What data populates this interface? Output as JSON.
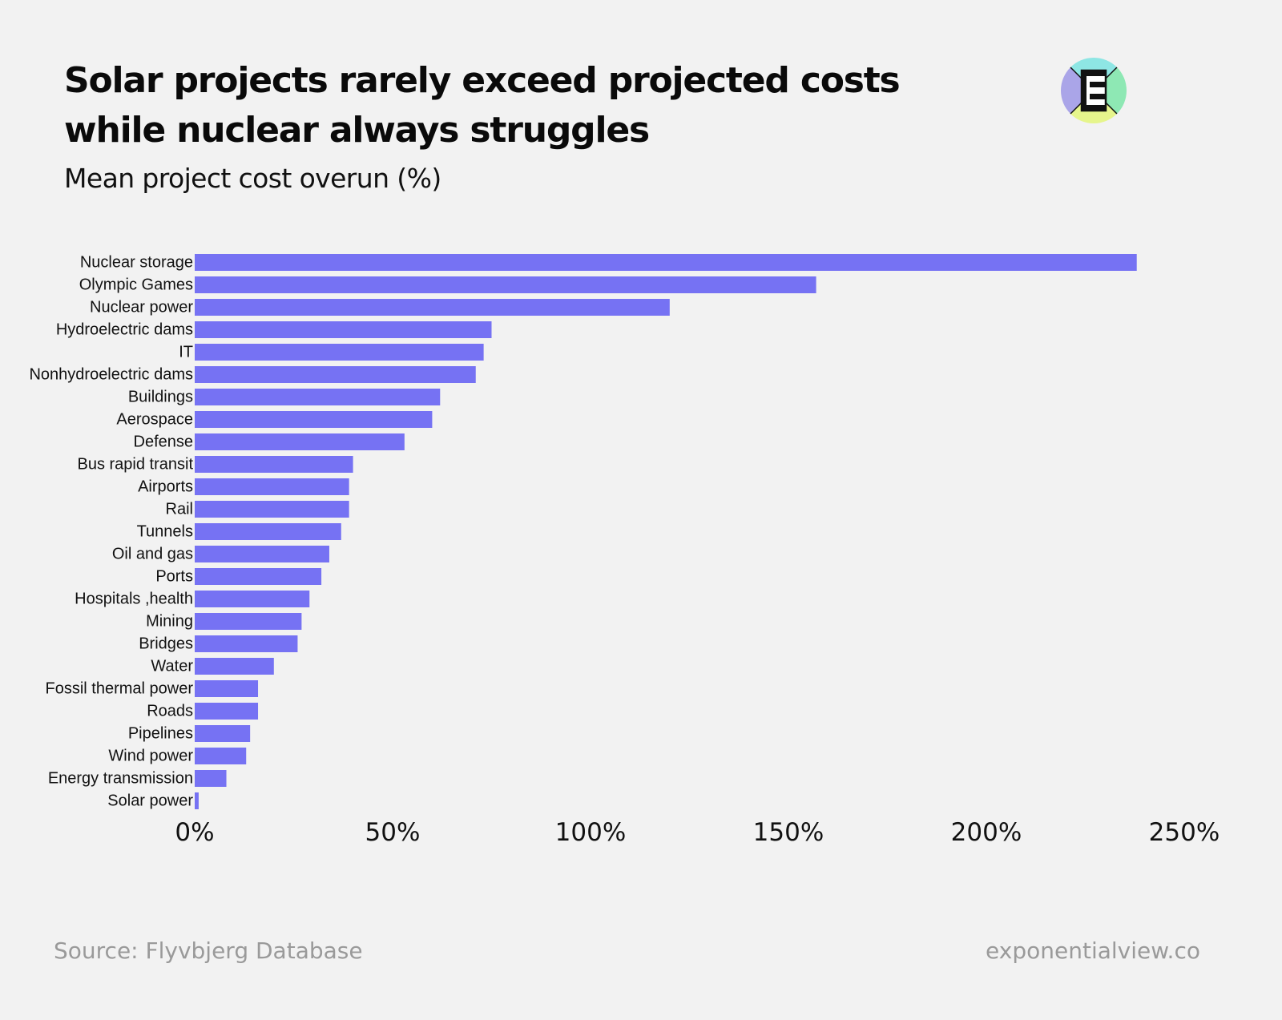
{
  "header": {
    "title": "Solar projects rarely exceed projected costs while nuclear always struggles",
    "subtitle": "Mean project cost overun (%)"
  },
  "logo": {
    "icon": "exponential-view-e-logo-icon",
    "letter": "E",
    "colors": {
      "top": "#8ee6e4",
      "right": "#8ee8b4",
      "bottom": "#e6f58c",
      "left": "#aaa5e8"
    }
  },
  "footer": {
    "source": "Source: Flyvbjerg Database",
    "site": "exponentialview.co"
  },
  "chart_data": {
    "type": "bar",
    "orientation": "horizontal",
    "bar_color": "#7672f3",
    "categories": [
      "Nuclear storage",
      "Olympic Games",
      "Nuclear power",
      "Hydroelectric dams",
      "IT",
      "Nonhydroelectric dams",
      "Buildings",
      "Aerospace",
      "Defense",
      "Bus rapid transit",
      "Airports",
      "Rail",
      "Tunnels",
      "Oil and gas",
      "Ports",
      "Hospitals ,health",
      "Mining",
      "Bridges",
      "Water",
      "Fossil thermal power",
      "Roads",
      "Pipelines",
      "Wind power",
      "Energy transmission",
      "Solar power"
    ],
    "values": [
      238,
      157,
      120,
      75,
      73,
      71,
      62,
      60,
      53,
      40,
      39,
      39,
      37,
      34,
      32,
      29,
      27,
      26,
      20,
      16,
      16,
      14,
      13,
      8,
      1
    ],
    "xlim": [
      0,
      250
    ],
    "x_ticks": [
      0,
      50,
      100,
      150,
      200,
      250
    ],
    "x_tick_labels": [
      "0%",
      "50%",
      "100%",
      "150%",
      "200%",
      "250%"
    ],
    "grid": false,
    "legend": "none"
  }
}
